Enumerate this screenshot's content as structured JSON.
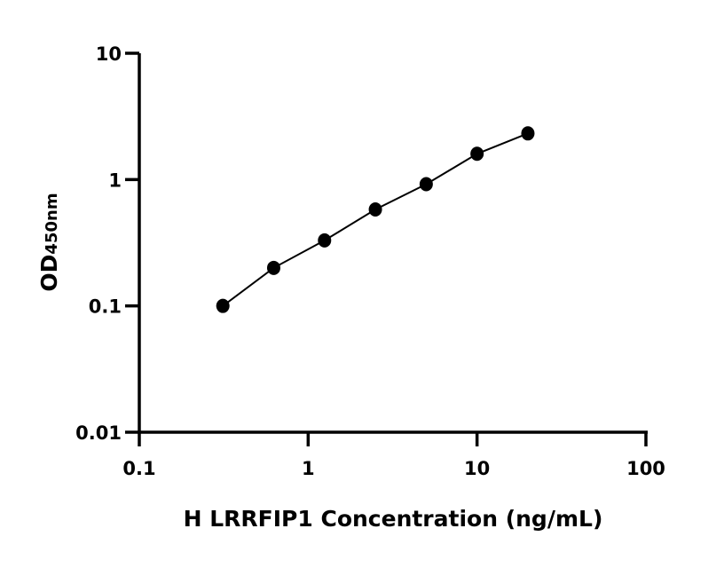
{
  "chart_data": {
    "type": "scatter",
    "title": "",
    "xlabel": "H LRRFIP1 Concentration (ng/mL)",
    "ylabel": "OD",
    "ylabel_subscript": "450nm",
    "x_scale": "log",
    "y_scale": "log",
    "xlim": [
      0.1,
      100
    ],
    "ylim": [
      0.01,
      10
    ],
    "x_ticks": [
      "0.1",
      "1",
      "10",
      "100"
    ],
    "y_ticks": [
      "0.01",
      "0.1",
      "1",
      "10"
    ],
    "grid": false,
    "fit_curve": true,
    "marker_color": "#000000",
    "points": [
      {
        "x": 0.3125,
        "y": 0.1
      },
      {
        "x": 0.625,
        "y": 0.2
      },
      {
        "x": 1.25,
        "y": 0.33
      },
      {
        "x": 2.5,
        "y": 0.58
      },
      {
        "x": 5,
        "y": 0.92
      },
      {
        "x": 10,
        "y": 1.6
      },
      {
        "x": 20,
        "y": 2.32
      }
    ]
  }
}
